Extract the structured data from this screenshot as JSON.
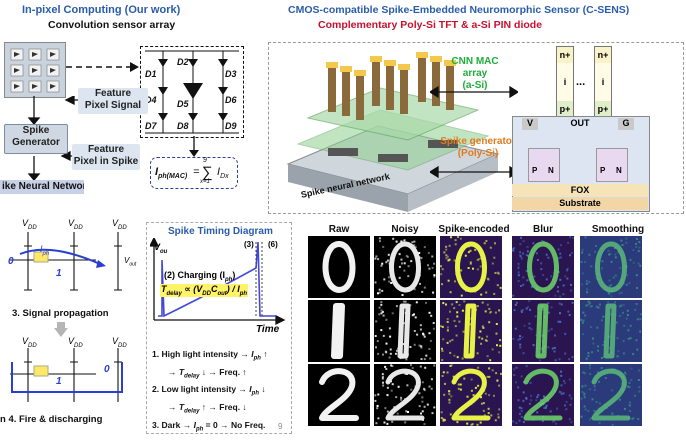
{
  "left_top": {
    "title": "In-pixel Computing (Our work)",
    "subtitle": "Convolution sensor array",
    "feature_pixel_signal": [
      "Feature",
      "Pixel Signal"
    ],
    "spike_generator": [
      "Spike",
      "Generator"
    ],
    "feature_pixel_in_spike": [
      "Feature",
      "Pixel in Spike"
    ],
    "snn": "ike Neural Network",
    "diodes": [
      "D1",
      "D2",
      "D3",
      "D4",
      "D5",
      "D6",
      "D7",
      "D8",
      "D9"
    ],
    "formula_lhs": "I",
    "formula_lhs_sub": "ph(MAC)",
    "formula_eq": "=",
    "formula_sum_top": "9",
    "formula_sum_bot": "x=1",
    "formula_rhs": "I",
    "formula_rhs_sub": "Dx"
  },
  "right_top": {
    "title": "CMOS-compatible Spike-Embedded Neuromorphic Sensor (C-SENS)",
    "subtitle": "Complementary Poly-Si TFT & a-Si PIN diode",
    "cnn_label": [
      "CNN MAC array",
      "(a-Si)"
    ],
    "spike_label": [
      "Spike generator",
      "(Poly-Si)"
    ],
    "snn_label": "Spike neural network",
    "layers": [
      "n+",
      "i",
      "p+"
    ],
    "ellipsis": "...",
    "terminals": [
      "V",
      "OUT",
      "G"
    ],
    "pn": [
      "P",
      "N",
      "P",
      "N"
    ],
    "fox": "FOX",
    "substrate": "Substrate"
  },
  "left_bottom": {
    "vdd": "V",
    "vdd_sub": "DD",
    "iph": "I",
    "iph_sub": "ph",
    "vout": "V",
    "vout_sub": "out",
    "nodes": [
      "0",
      "1",
      "1",
      "0"
    ],
    "step3": "3.  Signal propagation",
    "step4": "n 4.  Fire & discharging"
  },
  "timing": {
    "title": "Spike Timing Diagram",
    "v_axis": "V",
    "v_axis_sub": "ou",
    "markers": [
      "(3)",
      "(6)"
    ],
    "charging": "(2) Charging (I",
    "charging_sub": "ph",
    "charging_end": ")",
    "eq_html": "T",
    "eq_sub": "delay",
    "eq_rest": " ∝ (V",
    "eq_sub2": "DD",
    "eq_rest2": "C",
    "eq_sub3": "out",
    "eq_rest3": ") / I",
    "eq_sub4": "ph",
    "time": "Time",
    "items": [
      [
        "1.  High light intensity",
        "I",
        "ph",
        "↑"
      ],
      [
        "",
        "T",
        "delay",
        "↓  →  Freq. ↑"
      ],
      [
        "2.  Low light intensity",
        "I",
        "ph",
        "↓"
      ],
      [
        "",
        "T",
        "delay",
        "↑  →  Freq. ↓"
      ],
      [
        "3.  Dark",
        "I",
        "ph",
        " = 0  →  No Freq."
      ]
    ],
    "page": "9"
  },
  "image_grid": {
    "columns": [
      "Raw",
      "Noisy",
      "Spike-encoded",
      "Blur",
      "Smoothing"
    ],
    "digits": [
      "0",
      "1",
      "2"
    ]
  }
}
